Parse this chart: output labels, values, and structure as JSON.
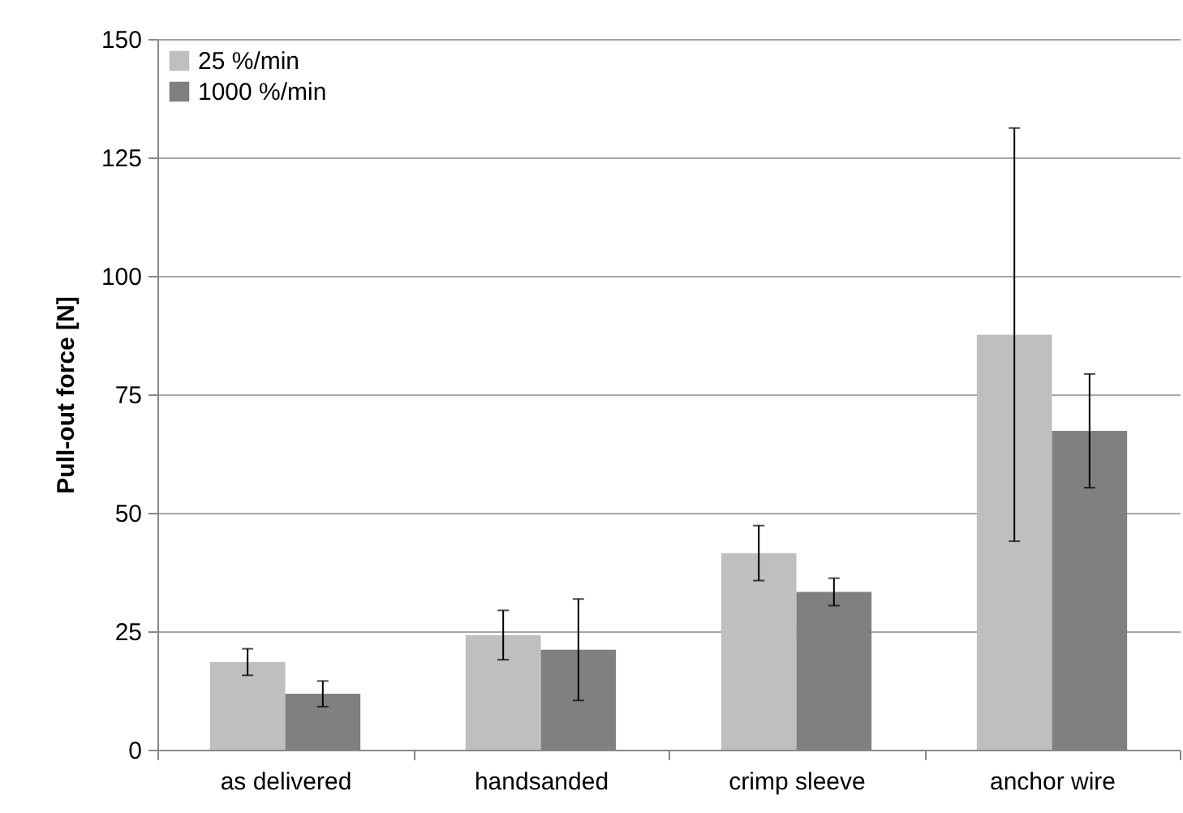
{
  "chart_data": {
    "type": "bar",
    "ylabel": "Pull-out force [N]",
    "categories": [
      "as delivered",
      "handsanded",
      "crimp sleeve",
      "anchor wire"
    ],
    "series": [
      {
        "name": "25 %/min",
        "color": "#bfbfbf",
        "values": [
          18.5,
          24.2,
          41.5,
          87.6
        ],
        "errors": [
          2.8,
          5.2,
          5.8,
          43.6
        ]
      },
      {
        "name": "1000 %/min",
        "color": "#808080",
        "values": [
          11.8,
          21.1,
          33.3,
          67.3
        ],
        "errors": [
          2.7,
          10.7,
          2.9,
          12
        ]
      }
    ],
    "ylim": [
      0,
      150
    ],
    "yticks": [
      0,
      25,
      50,
      75,
      100,
      125,
      150
    ],
    "grid": "y",
    "legend": "top left"
  }
}
